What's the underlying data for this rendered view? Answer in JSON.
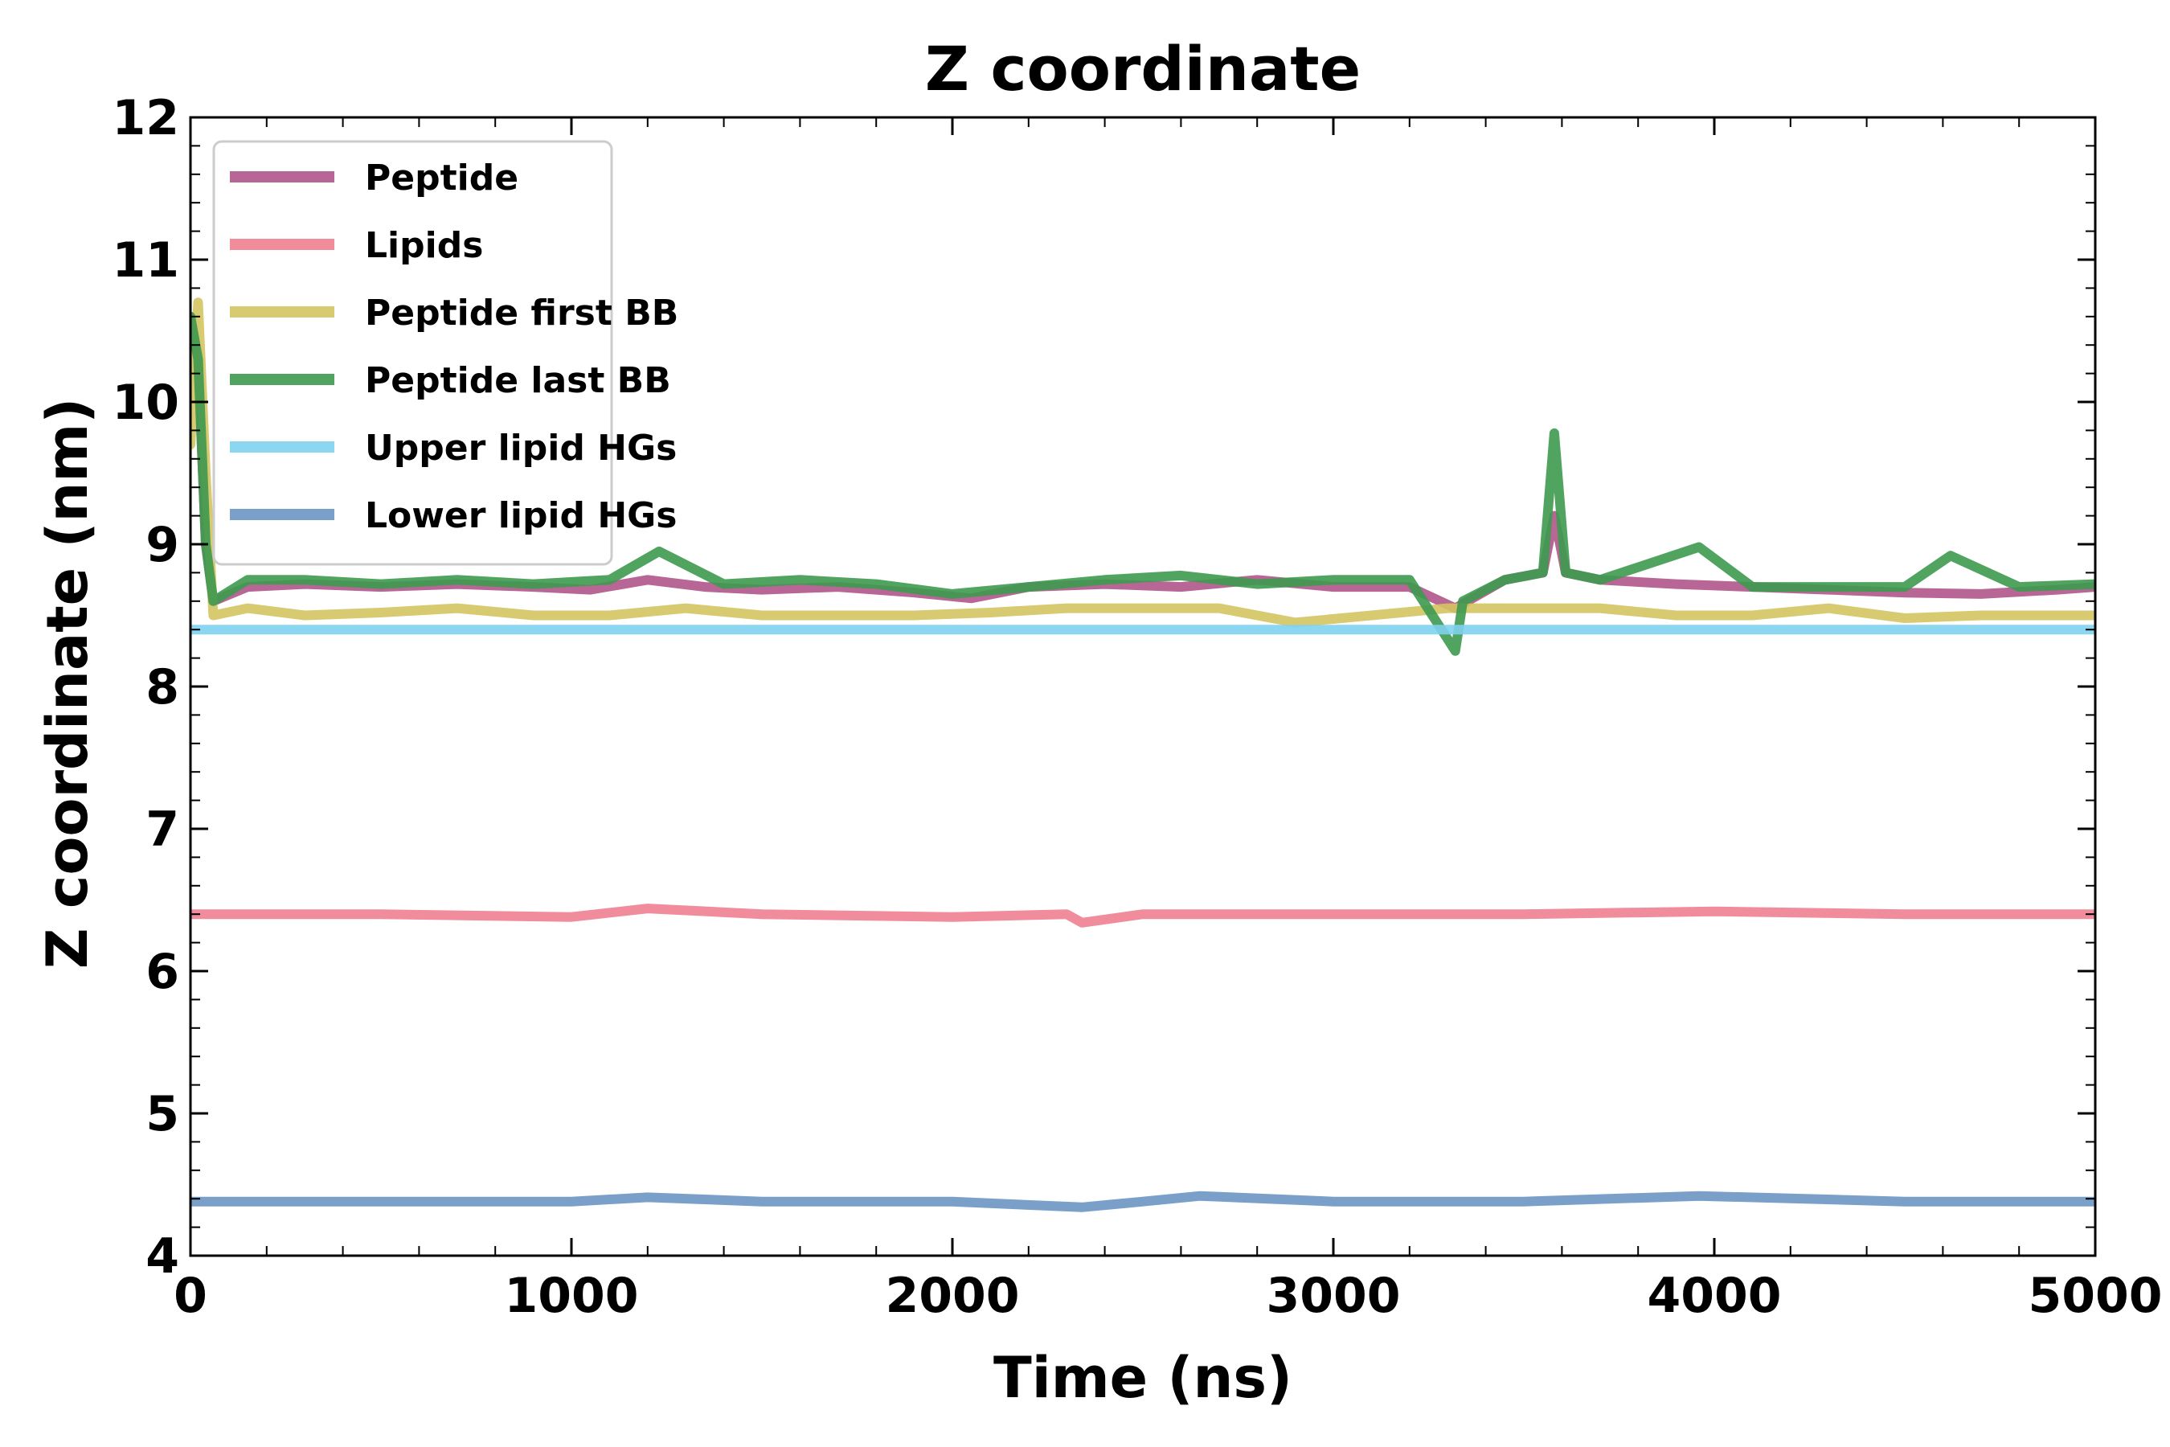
{
  "chart_data": {
    "type": "line",
    "title": "Z coordinate",
    "xlabel": "Time (ns)",
    "ylabel": "Z coordinate (nm)",
    "xlim": [
      0,
      5000
    ],
    "ylim": [
      4,
      12
    ],
    "xticks": [
      0,
      1000,
      2000,
      3000,
      4000,
      5000
    ],
    "yticks": [
      4,
      5,
      6,
      7,
      8,
      9,
      10,
      11,
      12
    ],
    "grid": false,
    "legend_position": "top-left",
    "series": [
      {
        "name": "Peptide",
        "color": "#b0558a",
        "x": [
          0,
          20,
          40,
          60,
          150,
          300,
          500,
          700,
          900,
          1050,
          1200,
          1350,
          1500,
          1700,
          1900,
          2050,
          2200,
          2400,
          2600,
          2800,
          3000,
          3200,
          3320,
          3450,
          3550,
          3580,
          3610,
          3700,
          3900,
          4100,
          4300,
          4500,
          4700,
          4900,
          5000
        ],
        "y": [
          10.6,
          10.3,
          9.0,
          8.6,
          8.7,
          8.72,
          8.7,
          8.72,
          8.7,
          8.68,
          8.75,
          8.7,
          8.68,
          8.7,
          8.66,
          8.62,
          8.7,
          8.72,
          8.7,
          8.75,
          8.7,
          8.7,
          8.55,
          8.75,
          8.8,
          9.2,
          8.8,
          8.75,
          8.72,
          8.7,
          8.68,
          8.66,
          8.65,
          8.68,
          8.7
        ]
      },
      {
        "name": "Lipids",
        "color": "#ee8090",
        "x": [
          0,
          500,
          1000,
          1200,
          1500,
          2000,
          2300,
          2340,
          2500,
          3000,
          3500,
          4000,
          4500,
          5000
        ],
        "y": [
          6.4,
          6.4,
          6.38,
          6.44,
          6.4,
          6.38,
          6.4,
          6.34,
          6.4,
          6.4,
          6.4,
          6.42,
          6.4,
          6.4
        ]
      },
      {
        "name": "Peptide first BB",
        "color": "#d4c460",
        "x": [
          0,
          20,
          40,
          60,
          150,
          300,
          500,
          700,
          900,
          1100,
          1300,
          1500,
          1700,
          1900,
          2100,
          2300,
          2500,
          2700,
          2900,
          3100,
          3300,
          3500,
          3700,
          3900,
          4100,
          4300,
          4500,
          4700,
          4900,
          5000
        ],
        "y": [
          9.7,
          10.7,
          9.5,
          8.5,
          8.55,
          8.5,
          8.52,
          8.55,
          8.5,
          8.5,
          8.55,
          8.5,
          8.5,
          8.5,
          8.52,
          8.55,
          8.55,
          8.55,
          8.45,
          8.5,
          8.55,
          8.55,
          8.55,
          8.5,
          8.5,
          8.55,
          8.48,
          8.5,
          8.5,
          8.5
        ]
      },
      {
        "name": "Peptide last BB",
        "color": "#3d9a4f",
        "x": [
          0,
          20,
          40,
          60,
          150,
          300,
          500,
          700,
          900,
          1100,
          1230,
          1400,
          1600,
          1800,
          2000,
          2200,
          2400,
          2600,
          2800,
          3000,
          3200,
          3320,
          3340,
          3450,
          3550,
          3580,
          3610,
          3700,
          3960,
          4100,
          4300,
          4500,
          4620,
          4800,
          5000
        ],
        "y": [
          10.6,
          10.3,
          9.0,
          8.6,
          8.75,
          8.75,
          8.72,
          8.75,
          8.72,
          8.75,
          8.95,
          8.72,
          8.75,
          8.72,
          8.65,
          8.7,
          8.75,
          8.78,
          8.72,
          8.75,
          8.75,
          8.25,
          8.6,
          8.75,
          8.8,
          9.78,
          8.8,
          8.75,
          8.98,
          8.7,
          8.7,
          8.7,
          8.92,
          8.7,
          8.72
        ]
      },
      {
        "name": "Upper lipid HGs",
        "color": "#7ed2ee",
        "x": [
          0,
          500,
          1000,
          1500,
          2000,
          2500,
          3000,
          3500,
          4000,
          4500,
          5000
        ],
        "y": [
          8.4,
          8.4,
          8.4,
          8.4,
          8.4,
          8.4,
          8.4,
          8.4,
          8.4,
          8.4,
          8.4
        ]
      },
      {
        "name": "Lower lipid HGs",
        "color": "#6b95c2",
        "x": [
          0,
          500,
          1000,
          1200,
          1500,
          2000,
          2340,
          2500,
          2650,
          3000,
          3500,
          3960,
          4500,
          5000
        ],
        "y": [
          4.38,
          4.38,
          4.38,
          4.41,
          4.38,
          4.38,
          4.34,
          4.38,
          4.42,
          4.38,
          4.38,
          4.42,
          4.38,
          4.38
        ]
      }
    ]
  }
}
